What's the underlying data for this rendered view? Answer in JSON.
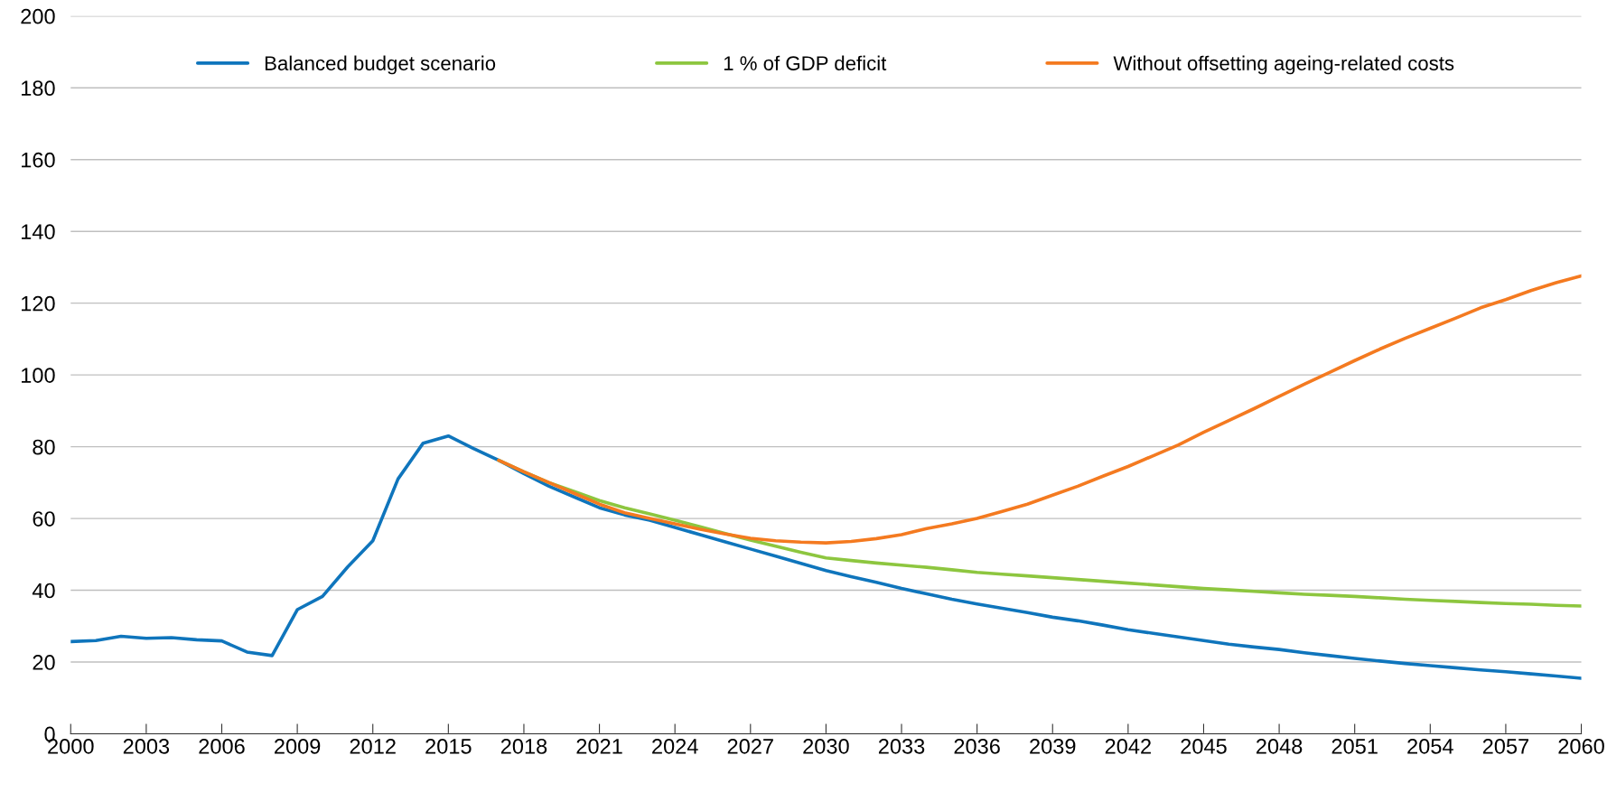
{
  "chart_data": {
    "type": "line",
    "x": [
      2000,
      2001,
      2002,
      2003,
      2004,
      2005,
      2006,
      2007,
      2008,
      2009,
      2010,
      2011,
      2012,
      2013,
      2014,
      2015,
      2016,
      2017,
      2018,
      2019,
      2020,
      2021,
      2022,
      2023,
      2024,
      2025,
      2026,
      2027,
      2028,
      2029,
      2030,
      2031,
      2032,
      2033,
      2034,
      2035,
      2036,
      2037,
      2038,
      2039,
      2040,
      2041,
      2042,
      2043,
      2044,
      2045,
      2046,
      2047,
      2048,
      2049,
      2050,
      2051,
      2052,
      2053,
      2054,
      2055,
      2056,
      2057,
      2058,
      2059,
      2060
    ],
    "series": [
      {
        "name": "Balanced budget scenario",
        "color": "#0f75bc",
        "values": [
          25.7,
          26,
          27.2,
          26.6,
          26.8,
          26.2,
          25.9,
          22.8,
          21.8,
          34.6,
          38.3,
          46.5,
          53.8,
          71,
          81,
          83,
          79.5,
          76.2,
          72.5,
          69,
          66,
          63,
          61,
          59.5,
          57.5,
          55.5,
          53.5,
          51.5,
          49.5,
          47.5,
          45.5,
          43.8,
          42.2,
          40.5,
          39,
          37.5,
          36.2,
          35,
          33.8,
          32.5,
          31.5,
          30.3,
          29,
          28,
          27,
          26,
          25,
          24.2,
          23.5,
          22.6,
          21.8,
          21,
          20.3,
          19.6,
          19,
          18.4,
          17.8,
          17.3,
          16.7,
          16.1,
          15.5
        ]
      },
      {
        "name": "1 % of GDP deficit",
        "color": "#8dc63f",
        "values": [
          null,
          null,
          null,
          null,
          null,
          null,
          null,
          null,
          null,
          null,
          null,
          null,
          null,
          null,
          null,
          null,
          null,
          76.2,
          73,
          70,
          67.5,
          65,
          63,
          61.3,
          59.5,
          57.7,
          55.8,
          54,
          52.3,
          50.6,
          49,
          48.3,
          47.6,
          47,
          46.4,
          45.7,
          45,
          44.5,
          44,
          43.5,
          43,
          42.5,
          42,
          41.5,
          41,
          40.5,
          40.1,
          39.7,
          39.3,
          38.9,
          38.6,
          38.3,
          37.9,
          37.5,
          37.2,
          36.9,
          36.6,
          36.3,
          36.1,
          35.8,
          35.6
        ]
      },
      {
        "name": "Without offsetting ageing-related costs",
        "color": "#f47a20",
        "values": [
          null,
          null,
          null,
          null,
          null,
          null,
          null,
          null,
          null,
          null,
          null,
          null,
          null,
          null,
          null,
          null,
          null,
          76.2,
          73,
          70,
          67,
          64,
          61.6,
          60,
          58.5,
          57,
          55.7,
          54.5,
          53.8,
          53.4,
          53.2,
          53.6,
          54.4,
          55.5,
          57.2,
          58.5,
          60,
          62,
          64,
          66.5,
          69,
          71.8,
          74.5,
          77.5,
          80.5,
          84,
          87.3,
          90.6,
          94,
          97.4,
          100.7,
          104,
          107.2,
          110.2,
          113,
          115.8,
          118.7,
          121,
          123.5,
          125.7,
          127.6
        ]
      }
    ],
    "xlim": [
      2000,
      2060
    ],
    "xticks": [
      2000,
      2003,
      2006,
      2009,
      2012,
      2015,
      2018,
      2021,
      2024,
      2027,
      2030,
      2033,
      2036,
      2039,
      2042,
      2045,
      2048,
      2051,
      2054,
      2057,
      2060
    ],
    "ylim": [
      0,
      200
    ],
    "yticks": [
      0,
      20,
      40,
      60,
      80,
      100,
      120,
      140,
      160,
      180,
      200
    ],
    "grid": "y",
    "legend": "top",
    "marker": "none",
    "line_style": "solid"
  }
}
